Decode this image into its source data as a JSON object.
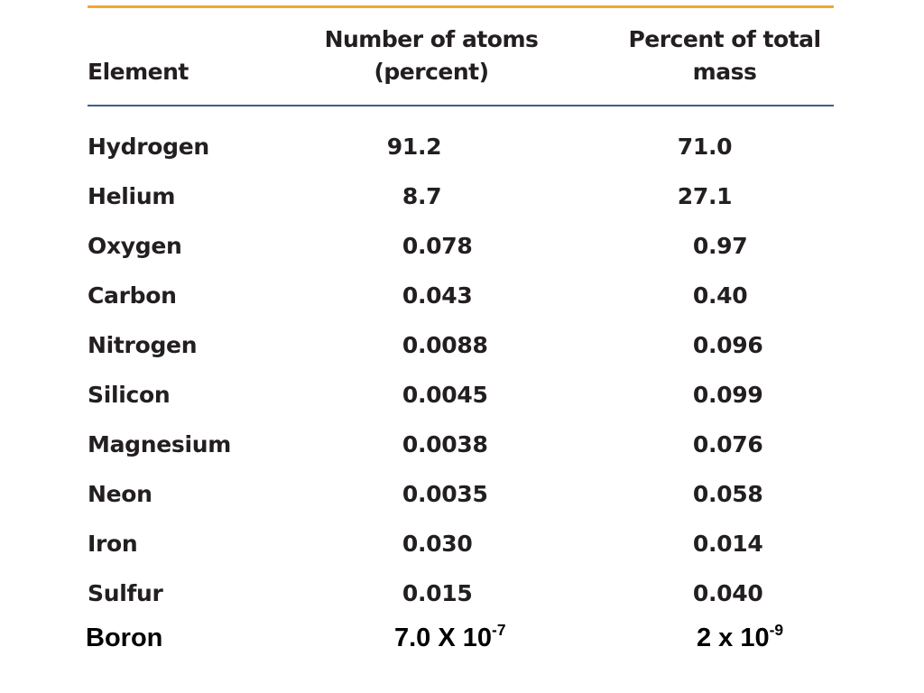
{
  "table": {
    "header": [
      "Element",
      [
        "Number of atoms",
        "(percent)"
      ],
      [
        "Percent of total",
        "mass"
      ]
    ],
    "rows": [
      [
        "Hydrogen",
        "91.2",
        "71.0"
      ],
      [
        "Helium",
        "8.7",
        "27.1"
      ],
      [
        "Oxygen",
        "0.078",
        "0.97"
      ],
      [
        "Carbon",
        "0.043",
        "0.40"
      ],
      [
        "Nitrogen",
        "0.0088",
        "0.096"
      ],
      [
        "Silicon",
        "0.0045",
        "0.099"
      ],
      [
        "Magnesium",
        "0.0038",
        "0.076"
      ],
      [
        "Neon",
        "0.0035",
        "0.058"
      ],
      [
        "Iron",
        "0.030",
        "0.014"
      ],
      [
        "Sulfur",
        "0.015",
        "0.040"
      ]
    ],
    "last_row": {
      "element": "Boron",
      "atoms": {
        "base": "7.0 X 10",
        "exp": "-7"
      },
      "mass": {
        "base": "2 x 10",
        "exp": "-9"
      }
    }
  }
}
